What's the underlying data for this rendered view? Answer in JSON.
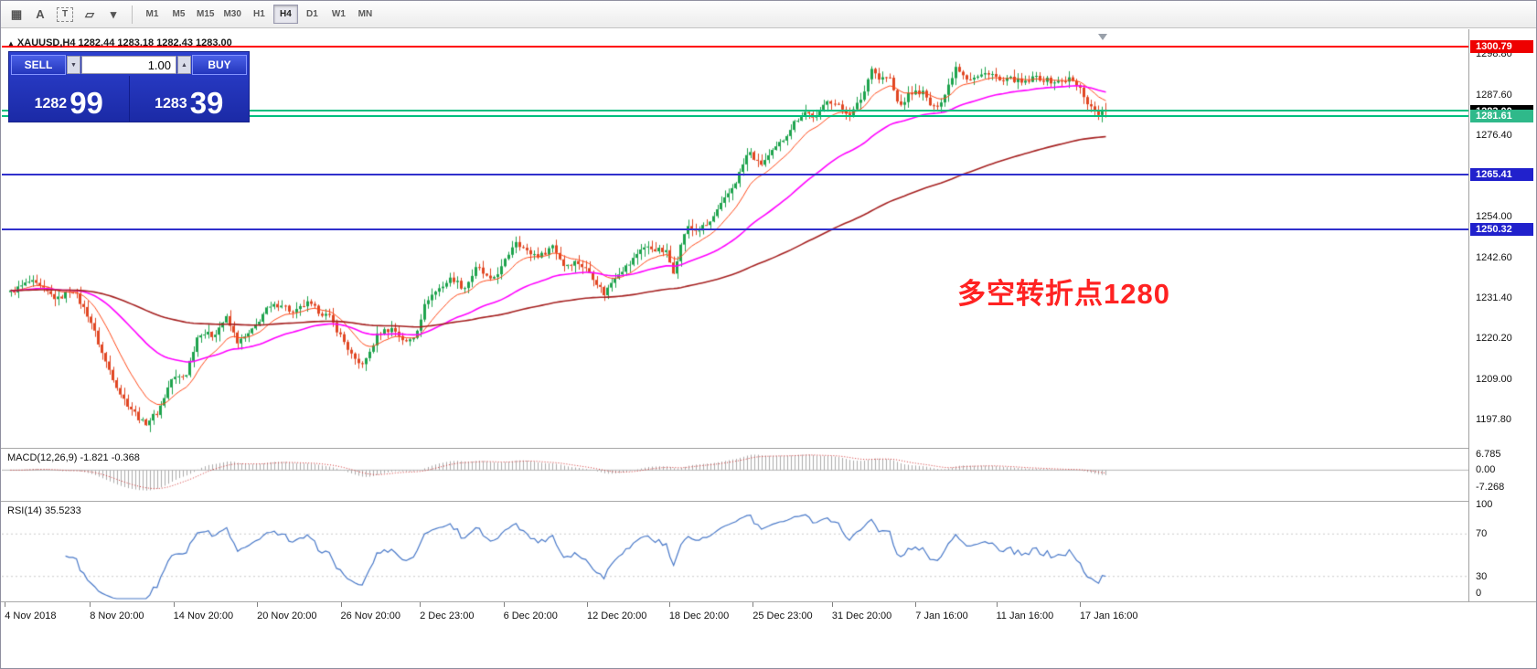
{
  "toolbar": {
    "icons": [
      {
        "name": "chart-grid-icon",
        "glyph": "▦"
      },
      {
        "name": "text-label-icon",
        "glyph": "A"
      },
      {
        "name": "textbox-icon",
        "glyph": "T"
      },
      {
        "name": "shapes-icon",
        "glyph": "▱"
      },
      {
        "name": "shapes-dropdown-arrow-icon",
        "glyph": "▾"
      }
    ],
    "timeframes": [
      "M1",
      "M5",
      "M15",
      "M30",
      "H1",
      "H4",
      "D1",
      "W1",
      "MN"
    ],
    "active": "H4"
  },
  "header": {
    "marker": "▲",
    "symbol_ohlc": "XAUUSD,H4  1282.44 1283.18 1282.43 1283.00"
  },
  "trade_panel": {
    "sell_label": "SELL",
    "buy_label": "BUY",
    "volume": "1.00",
    "spin_down": "▼",
    "spin_up": "▲",
    "sell_price": {
      "prefix": "1282",
      "big": "99"
    },
    "buy_price": {
      "prefix": "1283",
      "big": "39"
    }
  },
  "annotation": {
    "text": "多空转折点1280",
    "color": "#FF2222"
  },
  "price_axis": {
    "ticks": [
      "1298.80",
      "1287.60",
      "1276.40",
      "1254.00",
      "1242.60",
      "1231.40",
      "1220.20",
      "1209.00",
      "1197.80"
    ],
    "badges": [
      {
        "text": "1300.79",
        "price": 1300.79,
        "bg": "#EE0000",
        "fg": "#FFFFFF"
      },
      {
        "text": "1283.00",
        "price": 1283.0,
        "bg": "#000000",
        "fg": "#FFFFFF"
      },
      {
        "text": "1281.61",
        "price": 1281.61,
        "bg": "#2FB98A",
        "fg": "#FFFFFF"
      },
      {
        "text": "1265.41",
        "price": 1265.41,
        "bg": "#2121CC",
        "fg": "#FFFFFF"
      },
      {
        "text": "1250.32",
        "price": 1250.32,
        "bg": "#2121CC",
        "fg": "#FFFFFF"
      }
    ]
  },
  "hlines": [
    {
      "price": 1300.79,
      "color": "#FF0000"
    },
    {
      "price": 1283.3,
      "color": "#00BF7E"
    },
    {
      "price": 1281.61,
      "color": "#00BF7E"
    },
    {
      "price": 1265.41,
      "color": "#3030CC"
    },
    {
      "price": 1250.32,
      "color": "#3030CC"
    }
  ],
  "chart_data": {
    "type": "candlestick",
    "symbol": "XAUUSD",
    "timeframe": "H4",
    "title": "XAUUSD,H4",
    "ohlc_current": {
      "open": 1282.44,
      "high": 1283.18,
      "low": 1282.43,
      "close": 1283.0
    },
    "price_range": [
      1190.0,
      1304.9
    ],
    "num_candles": 300,
    "up_color": "#1EA34D",
    "down_color": "#E04622",
    "price_path": [
      [
        0.0,
        1233
      ],
      [
        0.018,
        1236
      ],
      [
        0.043,
        1231
      ],
      [
        0.056,
        1234
      ],
      [
        0.072,
        1226
      ],
      [
        0.085,
        1215
      ],
      [
        0.102,
        1204
      ],
      [
        0.122,
        1196.5
      ],
      [
        0.135,
        1200
      ],
      [
        0.147,
        1209
      ],
      [
        0.16,
        1210
      ],
      [
        0.172,
        1222
      ],
      [
        0.185,
        1221
      ],
      [
        0.197,
        1226
      ],
      [
        0.208,
        1219
      ],
      [
        0.22,
        1222
      ],
      [
        0.233,
        1228
      ],
      [
        0.247,
        1230
      ],
      [
        0.258,
        1227
      ],
      [
        0.27,
        1230
      ],
      [
        0.28,
        1228
      ],
      [
        0.291,
        1226
      ],
      [
        0.303,
        1220
      ],
      [
        0.316,
        1213
      ],
      [
        0.324,
        1214
      ],
      [
        0.336,
        1222
      ],
      [
        0.349,
        1223
      ],
      [
        0.361,
        1219
      ],
      [
        0.369,
        1221
      ],
      [
        0.38,
        1231
      ],
      [
        0.391,
        1234
      ],
      [
        0.403,
        1237
      ],
      [
        0.414,
        1234
      ],
      [
        0.426,
        1240
      ],
      [
        0.438,
        1236
      ],
      [
        0.449,
        1240
      ],
      [
        0.461,
        1247.5
      ],
      [
        0.472,
        1244
      ],
      [
        0.484,
        1243
      ],
      [
        0.495,
        1246
      ],
      [
        0.505,
        1240.5
      ],
      [
        0.517,
        1241.5
      ],
      [
        0.53,
        1238
      ],
      [
        0.542,
        1232.5
      ],
      [
        0.553,
        1238
      ],
      [
        0.566,
        1241
      ],
      [
        0.576,
        1245.5
      ],
      [
        0.588,
        1245
      ],
      [
        0.599,
        1244
      ],
      [
        0.605,
        1238.5
      ],
      [
        0.617,
        1251
      ],
      [
        0.627,
        1250
      ],
      [
        0.638,
        1252
      ],
      [
        0.651,
        1258
      ],
      [
        0.663,
        1264
      ],
      [
        0.674,
        1272
      ],
      [
        0.684,
        1268
      ],
      [
        0.694,
        1271
      ],
      [
        0.705,
        1275
      ],
      [
        0.716,
        1280
      ],
      [
        0.725,
        1283
      ],
      [
        0.736,
        1281
      ],
      [
        0.746,
        1286.5
      ],
      [
        0.757,
        1284
      ],
      [
        0.767,
        1282
      ],
      [
        0.777,
        1287
      ],
      [
        0.78,
        1289
      ],
      [
        0.786,
        1295.5
      ],
      [
        0.792,
        1292
      ],
      [
        0.802,
        1292.5
      ],
      [
        0.811,
        1284
      ],
      [
        0.821,
        1288
      ],
      [
        0.832,
        1288.5
      ],
      [
        0.842,
        1283.5
      ],
      [
        0.852,
        1287
      ],
      [
        0.863,
        1295.5
      ],
      [
        0.874,
        1292
      ],
      [
        0.884,
        1292.5
      ],
      [
        0.894,
        1294
      ],
      [
        0.904,
        1291
      ],
      [
        0.915,
        1292
      ],
      [
        0.925,
        1290.5
      ],
      [
        0.936,
        1292.5
      ],
      [
        0.946,
        1291.5
      ],
      [
        0.957,
        1291
      ],
      [
        0.967,
        1292
      ],
      [
        0.977,
        1289
      ],
      [
        0.985,
        1284.5
      ],
      [
        0.993,
        1282.5
      ],
      [
        1.0,
        1283.0
      ]
    ],
    "ma": [
      {
        "name": "fast-ma",
        "period": 12,
        "color": "#FF4A1A",
        "width": 1
      },
      {
        "name": "mid-ma",
        "period": 44,
        "color": "#FF00FF",
        "width": 1.6
      },
      {
        "name": "slow-ma",
        "period": 140,
        "color": "#A52020",
        "width": 1.6
      }
    ],
    "time_labels": [
      {
        "f": 0.002,
        "label": "4 Nov 2018"
      },
      {
        "f": 0.06,
        "label": "8 Nov 20:00"
      },
      {
        "f": 0.117,
        "label": "14 Nov 20:00"
      },
      {
        "f": 0.174,
        "label": "20 Nov 20:00"
      },
      {
        "f": 0.231,
        "label": "26 Nov 20:00"
      },
      {
        "f": 0.285,
        "label": "2 Dec 23:00"
      },
      {
        "f": 0.342,
        "label": "6 Dec 20:00"
      },
      {
        "f": 0.399,
        "label": "12 Dec 20:00"
      },
      {
        "f": 0.455,
        "label": "18 Dec 20:00"
      },
      {
        "f": 0.512,
        "label": "25 Dec 23:00"
      },
      {
        "f": 0.566,
        "label": "31 Dec 20:00"
      },
      {
        "f": 0.623,
        "label": "7 Jan 16:00"
      },
      {
        "f": 0.678,
        "label": "11 Jan 16:00"
      },
      {
        "f": 0.735,
        "label": "17 Jan 16:00"
      }
    ]
  },
  "macd_panel": {
    "label": "MACD(12,26,9) -1.821 -0.368",
    "ticks": [
      "6.785",
      "0.00",
      "-7.268"
    ],
    "tick_values": [
      6.785,
      0,
      -7.268
    ],
    "histogram_color": "#ABABAB",
    "signal_color": "#D03030"
  },
  "rsi_panel": {
    "label": "RSI(14) 35.5233",
    "value": 35.5233,
    "ticks": [
      "100",
      "70",
      "30",
      "0"
    ],
    "tick_values": [
      100,
      70,
      30,
      0
    ],
    "levels": [
      70,
      30
    ],
    "line_color": "#4878C8"
  }
}
